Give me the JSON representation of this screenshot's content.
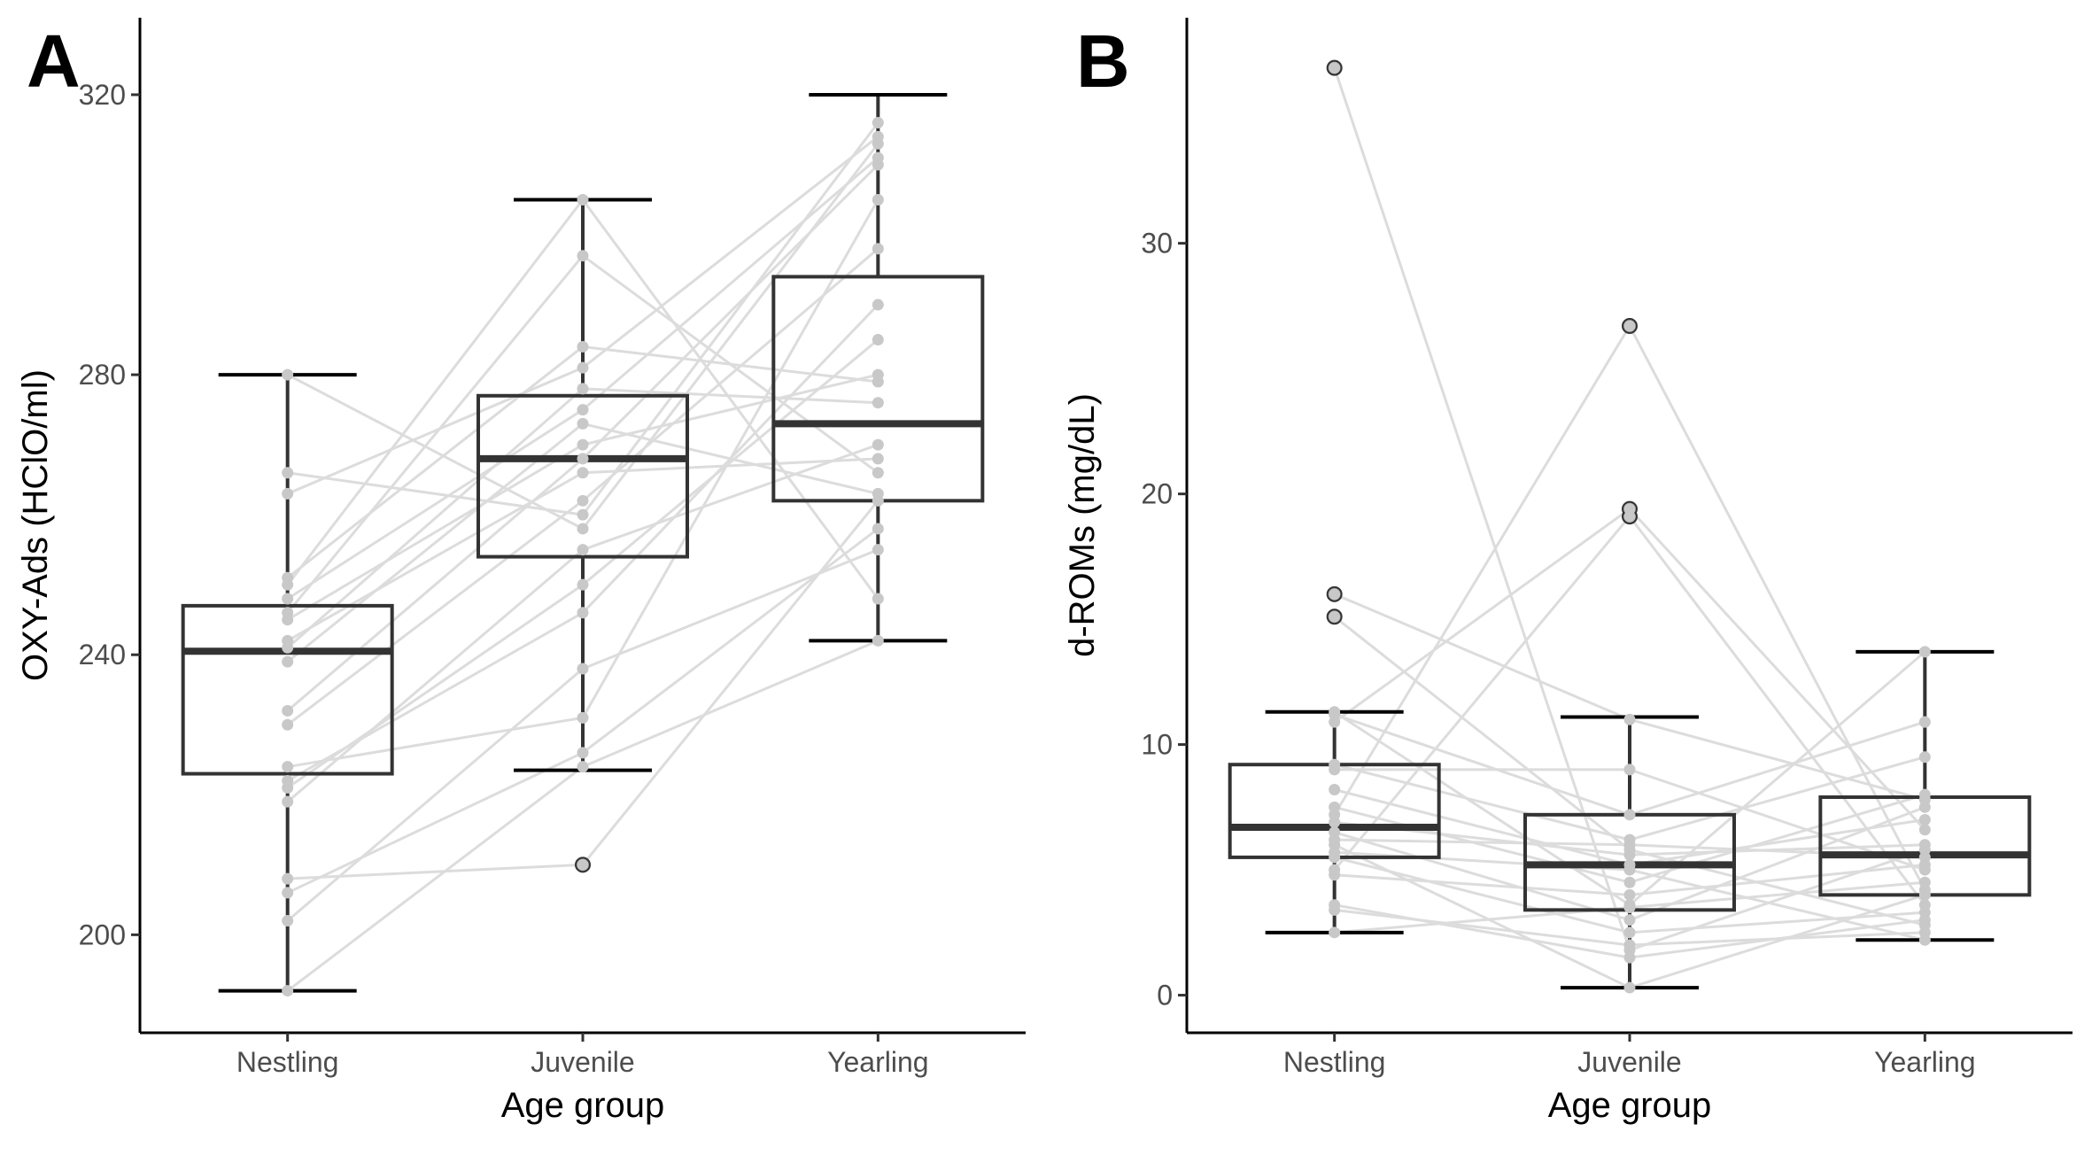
{
  "colors": {
    "box": "#333333",
    "points": "#c8c8c8",
    "lines": "#dcdcdc",
    "outlier_fill": "#808080",
    "outlier_stroke": "#333333"
  },
  "chart_data": [
    {
      "type": "boxplot",
      "panel_label": "A",
      "xlabel": "Age group",
      "ylabel": "OXY-Ads (HClO/ml)",
      "categories": [
        "Nestling",
        "Juvenile",
        "Yearling"
      ],
      "ylim": [
        186,
        331
      ],
      "yticks": [
        200,
        240,
        280,
        320
      ],
      "ytick_labels": [
        "200",
        "240",
        "280",
        "320"
      ],
      "grid": false,
      "boxes": [
        {
          "category": "Nestling",
          "whisker_low": 192,
          "q1": 223,
          "median": 240.5,
          "q3": 247,
          "whisker_high": 280,
          "outliers": []
        },
        {
          "category": "Juvenile",
          "whisker_low": 223.5,
          "q1": 254,
          "median": 268,
          "q3": 277,
          "whisker_high": 305,
          "outliers": [
            210
          ]
        },
        {
          "category": "Yearling",
          "whisker_low": 242,
          "q1": 262,
          "median": 273,
          "q3": 294,
          "whisker_high": 320,
          "outliers": []
        }
      ],
      "individuals": [
        [
          192,
          224,
          242
        ],
        [
          202,
          238,
          255
        ],
        [
          206,
          226,
          258
        ],
        [
          208,
          210,
          262
        ],
        [
          219,
          255,
          270
        ],
        [
          221,
          250,
          285
        ],
        [
          222,
          246,
          290
        ],
        [
          224,
          231,
          305
        ],
        [
          230,
          262,
          298
        ],
        [
          232,
          268,
          310
        ],
        [
          239,
          273,
          263
        ],
        [
          241,
          278,
          276
        ],
        [
          242,
          266,
          268
        ],
        [
          245,
          270,
          280
        ],
        [
          246,
          297,
          266
        ],
        [
          248,
          275,
          311
        ],
        [
          250,
          305,
          248
        ],
        [
          251,
          284,
          279
        ],
        [
          263,
          281,
          314
        ],
        [
          266,
          260,
          316
        ],
        [
          280,
          258,
          313
        ]
      ]
    },
    {
      "type": "boxplot",
      "panel_label": "B",
      "xlabel": "Age group",
      "ylabel": "d-ROMs (mg/dL)",
      "categories": [
        "Nestling",
        "Juvenile",
        "Yearling"
      ],
      "ylim": [
        -1.5,
        39
      ],
      "yticks": [
        0,
        10,
        20,
        30
      ],
      "ytick_labels": [
        "0",
        "10",
        "20",
        "30"
      ],
      "grid": false,
      "boxes": [
        {
          "category": "Nestling",
          "whisker_low": 2.5,
          "q1": 5.5,
          "median": 6.7,
          "q3": 9.2,
          "whisker_high": 11.3,
          "outliers": [
            15.1,
            16.0,
            37.0
          ]
        },
        {
          "category": "Juvenile",
          "whisker_low": 0.3,
          "q1": 3.4,
          "median": 5.2,
          "q3": 7.2,
          "whisker_high": 11.1,
          "outliers": [
            19.1,
            19.4,
            26.7
          ]
        },
        {
          "category": "Yearling",
          "whisker_low": 2.2,
          "q1": 4.0,
          "median": 5.6,
          "q3": 7.9,
          "whisker_high": 13.7,
          "outliers": []
        }
      ],
      "individuals": [
        [
          2.5,
          3.5,
          4.5
        ],
        [
          3.4,
          2.0,
          2.5
        ],
        [
          3.6,
          1.5,
          3.0
        ],
        [
          4.8,
          4.0,
          5.2
        ],
        [
          5.5,
          2.5,
          3.3
        ],
        [
          5.7,
          5.0,
          2.2
        ],
        [
          6.0,
          0.3,
          4.0
        ],
        [
          6.2,
          6.0,
          5.5
        ],
        [
          6.5,
          3.0,
          7.5
        ],
        [
          6.9,
          5.6,
          6.0
        ],
        [
          7.5,
          4.5,
          8.0
        ],
        [
          8.2,
          5.2,
          7.0
        ],
        [
          9.0,
          9.0,
          5.0
        ],
        [
          9.2,
          6.2,
          9.5
        ],
        [
          10.9,
          19.4,
          6.6
        ],
        [
          11.2,
          7.2,
          10.9
        ],
        [
          11.3,
          3.6,
          13.7
        ],
        [
          15.1,
          5.8,
          2.8
        ],
        [
          16.0,
          11.0,
          7.8
        ],
        [
          37.0,
          1.8,
          5.8
        ],
        [
          7.2,
          26.7,
          4.2
        ],
        [
          5.0,
          19.1,
          3.6
        ]
      ]
    }
  ]
}
